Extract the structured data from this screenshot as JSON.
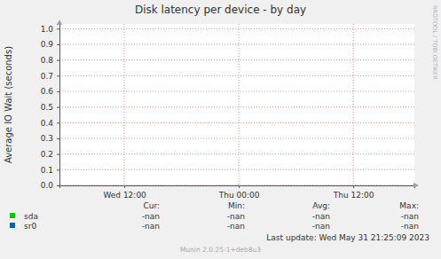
{
  "chart_data": {
    "type": "line",
    "title": "Disk latency per device - by day",
    "y_label": "Average IO Wait (seconds)",
    "x": [],
    "xlim": [
      5.2,
      42.4
    ],
    "xticks": [
      {
        "value": 12,
        "label": "Wed 12:00"
      },
      {
        "value": 24,
        "label": "Thu 00:00"
      },
      {
        "value": 36,
        "label": "Thu 12:00"
      }
    ],
    "ylim": [
      0,
      1.03
    ],
    "yticks": [
      {
        "value": 0,
        "label": "0.0"
      },
      0.1,
      0.2,
      0.3,
      0.4,
      0.5,
      0.6,
      0.7,
      0.8,
      0.9,
      {
        "value": 1,
        "label": "1.0"
      }
    ],
    "grid": true,
    "legend": "bottom",
    "legend_columns": [
      "Cur:",
      "Min:",
      "Avg:",
      "Max:"
    ],
    "series": [
      {
        "name": "sda",
        "color": "#00cc00",
        "values": [],
        "stats": [
          "-nan",
          "-nan",
          "-nan",
          "-nan"
        ]
      },
      {
        "name": "sr0",
        "color": "#0066b3",
        "values": [],
        "stats": [
          "-nan",
          "-nan",
          "-nan",
          "-nan"
        ]
      }
    ],
    "last_update": "Last update: Wed May 31 21:25:09 2023",
    "footer": "Munin 2.0.25-1+deb8u3",
    "watermark": "RRDTOOL / TOBI OETIKER"
  }
}
